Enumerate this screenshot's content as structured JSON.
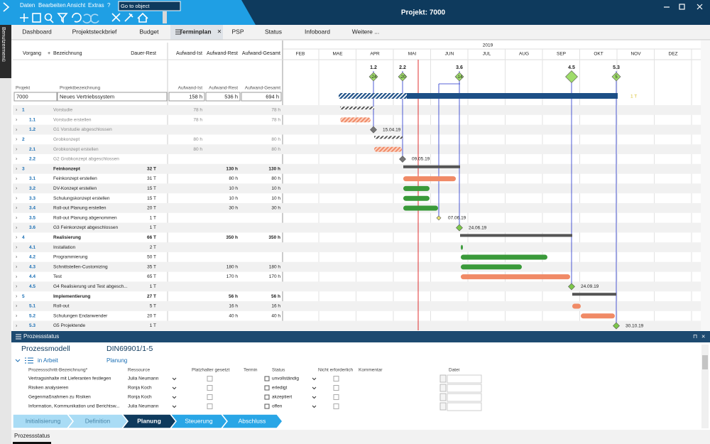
{
  "app": {
    "menu": [
      "Daten",
      "Bearbeiten",
      "Ansicht",
      "Extras",
      "?"
    ],
    "search": "Go to object",
    "title": "Projekt: 7000",
    "side_menu": "Benutzermenü"
  },
  "tabs": [
    "Dashboard",
    "Projektsteckbrief",
    "Budget",
    "Terminplan",
    "PSP",
    "Status",
    "Infoboard",
    "Weitere ..."
  ],
  "gantt": {
    "columns": [
      "Vorgang",
      "Bezeichnung",
      "Dauer-Rest",
      "Aufwand-Ist",
      "Aufwand-Rest",
      "Aufwand-Gesamt"
    ],
    "project_labels": [
      "Projekt",
      "Projektbezeichnung",
      "Aufwand-Ist",
      "Aufwand-Rest",
      "Aufwand-Gesamt"
    ],
    "project": {
      "id": "7000",
      "name": "Neues Vertriebssystem",
      "ist": "158 h",
      "rest": "536 h",
      "gesamt": "694 h",
      "bar_label": "1 T"
    },
    "year": "2019",
    "months": [
      "FEB",
      "MAE",
      "APR",
      "MAI",
      "JUN",
      "JUL",
      "AUG",
      "SEP",
      "OKT",
      "NOV",
      "DEZ"
    ],
    "milestones": [
      {
        "id": "1.2",
        "delta": "-24"
      },
      {
        "id": "2.2",
        "delta": "-20"
      },
      {
        "id": "3.6",
        "delta": "-14"
      },
      {
        "id": "4.5"
      },
      {
        "id": "5.3",
        "delta": "5"
      }
    ],
    "rows": [
      {
        "id": "1",
        "name": "Vorstudie",
        "ist": "78 h",
        "gesamt": "78 h",
        "summary": true,
        "done": true
      },
      {
        "id": "1.1",
        "name": "Vorstudie erstellen",
        "ist": "78 h",
        "gesamt": "78 h",
        "done": true
      },
      {
        "id": "1.2",
        "name": "G1 Vorstudie abgeschlossen",
        "date": "15.04.19",
        "done": true
      },
      {
        "id": "2",
        "name": "Grobkonzept",
        "ist": "80 h",
        "gesamt": "80 h",
        "summary": true,
        "done": true
      },
      {
        "id": "2.1",
        "name": "Grobkonzept erstellen",
        "ist": "80 h",
        "gesamt": "80 h",
        "done": true
      },
      {
        "id": "2.2",
        "name": "G2 Grobkonzept abgeschlossen",
        "date": "09.05.19",
        "done": true
      },
      {
        "id": "3",
        "name": "Feinkonzept",
        "dauer": "32 T",
        "rest": "130 h",
        "gesamt": "130 h",
        "summary": true
      },
      {
        "id": "3.1",
        "name": "Feinkonzept erstellen",
        "dauer": "31 T",
        "rest": "80 h",
        "gesamt": "80 h"
      },
      {
        "id": "3.2",
        "name": "DV-Konzept erstellen",
        "dauer": "15 T",
        "rest": "10 h",
        "gesamt": "10 h"
      },
      {
        "id": "3.3",
        "name": "Schulungskonzept erstellen",
        "dauer": "15 T",
        "rest": "10 h",
        "gesamt": "10 h"
      },
      {
        "id": "3.4",
        "name": "Roll-out Planung erstellen",
        "dauer": "20 T",
        "rest": "30 h",
        "gesamt": "30 h"
      },
      {
        "id": "3.5",
        "name": "Roll-out Planung abgenommen",
        "dauer": "1 T",
        "date": "07.06.19"
      },
      {
        "id": "3.6",
        "name": "G3 Feinkonzept abgeschlossen",
        "dauer": "1 T",
        "date": "24.06.19"
      },
      {
        "id": "4",
        "name": "Realisierung",
        "dauer": "66 T",
        "rest": "350 h",
        "gesamt": "350 h",
        "summary": true
      },
      {
        "id": "4.1",
        "name": "Installation",
        "dauer": "2 T"
      },
      {
        "id": "4.2",
        "name": "Programmierung",
        "dauer": "50 T"
      },
      {
        "id": "4.3",
        "name": "Schnittstellen-Customizing",
        "dauer": "35 T",
        "rest": "180 h",
        "gesamt": "180 h"
      },
      {
        "id": "4.4",
        "name": "Test",
        "dauer": "65 T",
        "rest": "170 h",
        "gesamt": "170 h"
      },
      {
        "id": "4.5",
        "name": "G4 Realisierung und Test abgesch...",
        "dauer": "1 T",
        "date": "24.09.19"
      },
      {
        "id": "5",
        "name": "Implementierung",
        "dauer": "27 T",
        "rest": "56 h",
        "gesamt": "56 h",
        "summary": true
      },
      {
        "id": "5.1",
        "name": "Roll-out",
        "dauer": "5 T",
        "rest": "16 h",
        "gesamt": "16 h"
      },
      {
        "id": "5.2",
        "name": "Schulungen Endanwender",
        "dauer": "20 T",
        "rest": "40 h",
        "gesamt": "40 h"
      },
      {
        "id": "5.3",
        "name": "G5 Projektende",
        "dauer": "1 T",
        "date": "30.10.19"
      }
    ]
  },
  "process": {
    "title": "Prozessstatus",
    "model_label": "Prozessmodell",
    "model": "DIN69901/1-5",
    "state": "in Arbeit",
    "phase": "Planung",
    "columns": [
      "Prozessschritt-Bezeichnung*",
      "Ressource",
      "Platzhalter gesetzt",
      "Termin",
      "Status",
      "Nicht erforderlich",
      "Kommentar",
      "Datei"
    ],
    "rows": [
      {
        "name": "Vertragsinhalte mit Lieferanten festlegen",
        "resource": "Julia Neumann",
        "status": "unvollständig"
      },
      {
        "name": "Risiken analysieren",
        "resource": "Ronja Koch",
        "status": "erledigt"
      },
      {
        "name": "Gegenmaßnahmen zu Risiken",
        "resource": "Ronja Koch",
        "status": "akzeptiert"
      },
      {
        "name": "Information, Kommunikation und Berichtsw...",
        "resource": "Julia Neumann",
        "status": "offen"
      }
    ],
    "steps": [
      "Initialisierung",
      "Definition",
      "Planung",
      "Steuerung",
      "Abschluss"
    ],
    "bottom_tab": "Prozessstatus"
  }
}
